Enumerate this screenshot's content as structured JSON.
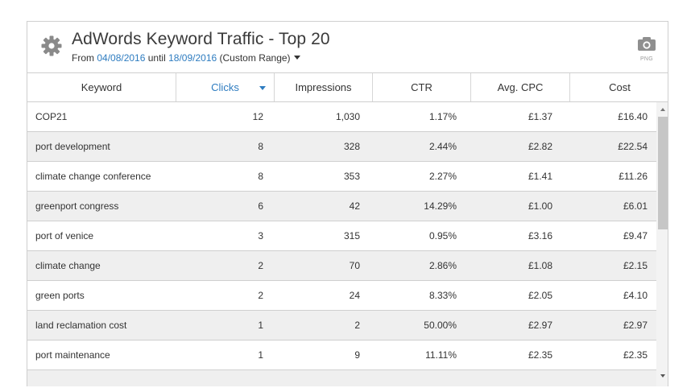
{
  "header": {
    "title": "AdWords Keyword Traffic - Top 20",
    "range_prefix": "From",
    "start_date": "04/08/2016",
    "range_mid": "until",
    "end_date": "18/09/2016",
    "range_label": "(Custom Range)",
    "export_label": "PNG"
  },
  "columns": [
    "Keyword",
    "Clicks",
    "Impressions",
    "CTR",
    "Avg. CPC",
    "Cost"
  ],
  "sorted_column": "Clicks",
  "rows": [
    {
      "keyword": "COP21",
      "clicks": "12",
      "impressions": "1,030",
      "ctr": "1.17%",
      "cpc": "£1.37",
      "cost": "£16.40"
    },
    {
      "keyword": "port development",
      "clicks": "8",
      "impressions": "328",
      "ctr": "2.44%",
      "cpc": "£2.82",
      "cost": "£22.54"
    },
    {
      "keyword": "climate change conference",
      "clicks": "8",
      "impressions": "353",
      "ctr": "2.27%",
      "cpc": "£1.41",
      "cost": "£11.26"
    },
    {
      "keyword": "greenport congress",
      "clicks": "6",
      "impressions": "42",
      "ctr": "14.29%",
      "cpc": "£1.00",
      "cost": "£6.01"
    },
    {
      "keyword": "port of venice",
      "clicks": "3",
      "impressions": "315",
      "ctr": "0.95%",
      "cpc": "£3.16",
      "cost": "£9.47"
    },
    {
      "keyword": "climate change",
      "clicks": "2",
      "impressions": "70",
      "ctr": "2.86%",
      "cpc": "£1.08",
      "cost": "£2.15"
    },
    {
      "keyword": "green ports",
      "clicks": "2",
      "impressions": "24",
      "ctr": "8.33%",
      "cpc": "£2.05",
      "cost": "£4.10"
    },
    {
      "keyword": "land reclamation cost",
      "clicks": "1",
      "impressions": "2",
      "ctr": "50.00%",
      "cpc": "£2.97",
      "cost": "£2.97"
    },
    {
      "keyword": "port maintenance",
      "clicks": "1",
      "impressions": "9",
      "ctr": "11.11%",
      "cpc": "£2.35",
      "cost": "£2.35"
    }
  ],
  "colors": {
    "accent": "#2e7cc0",
    "row_alt": "#efefef",
    "border": "#cfcfcf"
  }
}
